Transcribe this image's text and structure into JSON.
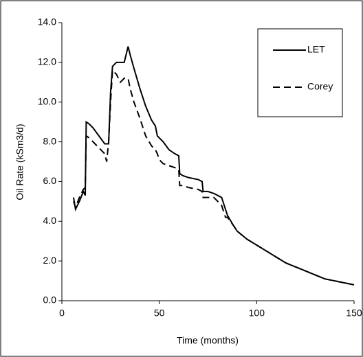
{
  "chart_data": {
    "type": "line",
    "xlabel": "Time (months)",
    "ylabel": "Oil Rate (kSm3/d)",
    "x": [
      6,
      7,
      9,
      11,
      12,
      12.5,
      14,
      16,
      19,
      22,
      23,
      24,
      25,
      26,
      28,
      30,
      32,
      34,
      35,
      37,
      40,
      43,
      46,
      48,
      49,
      50,
      52,
      55,
      58,
      60,
      60.5,
      62,
      65,
      70,
      72,
      72.5,
      75,
      78,
      80,
      82,
      84,
      85,
      88,
      90,
      95,
      100,
      105,
      110,
      115,
      120,
      125,
      130,
      135,
      140,
      145,
      150
    ],
    "series": [
      {
        "name": "LET",
        "color": "#000000",
        "dash": "solid",
        "values": [
          5.2,
          4.6,
          5.0,
          5.5,
          5.3,
          9.0,
          8.9,
          8.7,
          8.3,
          7.9,
          7.9,
          7.9,
          10.5,
          11.8,
          12.0,
          12.0,
          12.0,
          12.8,
          12.4,
          11.7,
          10.7,
          9.8,
          9.1,
          8.8,
          8.3,
          8.2,
          8.0,
          7.6,
          7.4,
          7.3,
          6.4,
          6.3,
          6.2,
          6.1,
          6.0,
          5.5,
          5.5,
          5.4,
          5.3,
          5.2,
          4.6,
          4.3,
          3.8,
          3.5,
          3.1,
          2.8,
          2.5,
          2.2,
          1.9,
          1.7,
          1.5,
          1.3,
          1.1,
          1.0,
          0.9,
          0.8
        ]
      },
      {
        "name": "Corey",
        "color": "#000000",
        "dash": "dashed",
        "values": [
          5.0,
          4.7,
          5.2,
          5.6,
          5.7,
          8.3,
          8.2,
          8.0,
          7.7,
          7.4,
          7.0,
          8.0,
          10.0,
          11.6,
          11.4,
          11.0,
          11.2,
          11.2,
          10.7,
          10.0,
          9.2,
          8.3,
          7.8,
          7.6,
          7.4,
          7.1,
          6.9,
          6.8,
          6.7,
          6.6,
          5.8,
          5.8,
          5.7,
          5.6,
          5.5,
          5.2,
          5.2,
          5.2,
          5.0,
          4.8,
          4.2,
          4.2,
          3.8,
          3.5,
          3.1,
          2.8,
          2.5,
          2.2,
          1.9,
          1.7,
          1.5,
          1.3,
          1.1,
          1.0,
          0.9,
          0.8
        ]
      }
    ],
    "xlim": [
      0,
      150
    ],
    "xticks": [
      0,
      50,
      100,
      150
    ],
    "ylim": [
      0,
      14
    ],
    "yticks": [
      {
        "value": 0,
        "label": "0.0"
      },
      {
        "value": 2,
        "label": "2.0"
      },
      {
        "value": 4,
        "label": "4.0"
      },
      {
        "value": 6,
        "label": "6.0"
      },
      {
        "value": 8,
        "label": "8.0"
      },
      {
        "value": 10,
        "label": "10.0"
      },
      {
        "value": 12,
        "label": "12.0"
      },
      {
        "value": 14,
        "label": "14.0"
      }
    ],
    "grid": false,
    "legend": "upper right"
  }
}
